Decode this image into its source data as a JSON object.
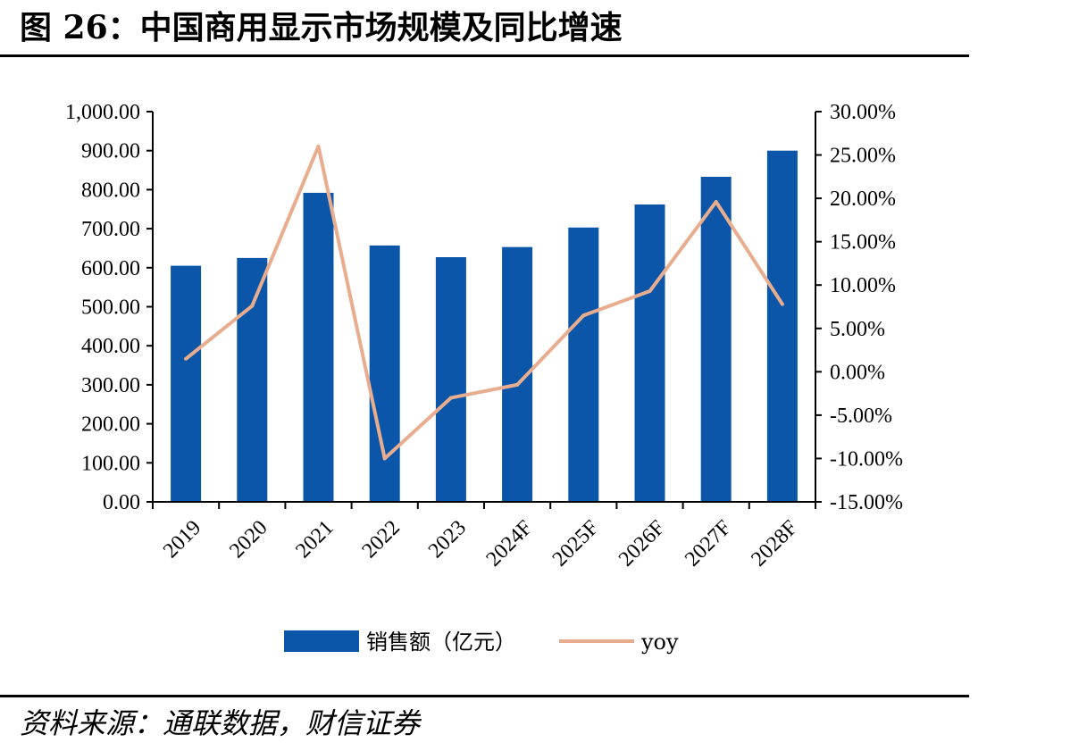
{
  "header": {
    "title": "图 26：中国商用显示市场规模及同比增速"
  },
  "footer": {
    "source": "资料来源：通联数据，财信证券"
  },
  "colors": {
    "bar": "#0b56a8",
    "line": "#e8ad8e",
    "axis": "#000000"
  },
  "chart_data": {
    "type": "bar",
    "categories": [
      "2019",
      "2020",
      "2021",
      "2022",
      "2023",
      "2024F",
      "2025F",
      "2026F",
      "2027F",
      "2028F"
    ],
    "series": [
      {
        "name": "销售额（亿元）",
        "type": "bar",
        "axis": "left",
        "values": [
          605,
          625,
          792,
          657,
          627,
          653,
          703,
          762,
          833,
          900
        ]
      },
      {
        "name": "yoy",
        "type": "line",
        "axis": "right",
        "values": [
          1.5,
          7.6,
          26.0,
          -10.0,
          -3.0,
          -1.5,
          6.5,
          9.3,
          19.6,
          7.8
        ]
      }
    ],
    "y_left": {
      "min": 0,
      "max": 1000,
      "ticks": [
        "0.00",
        "100.00",
        "200.00",
        "300.00",
        "400.00",
        "500.00",
        "600.00",
        "700.00",
        "800.00",
        "900.00",
        "1,000.00"
      ]
    },
    "y_right": {
      "min": -15,
      "max": 30,
      "ticks": [
        "-15.00%",
        "-10.00%",
        "-5.00%",
        "0.00%",
        "5.00%",
        "10.00%",
        "15.00%",
        "20.00%",
        "25.00%",
        "30.00%"
      ]
    },
    "legend_position": "bottom-center",
    "grid": false
  }
}
